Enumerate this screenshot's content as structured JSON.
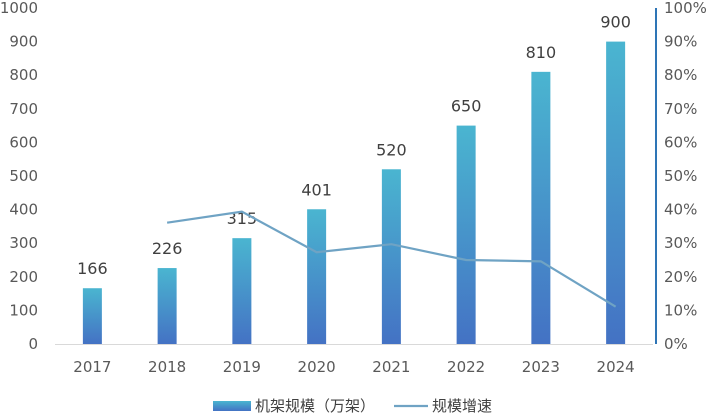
{
  "chart_data": {
    "type": "bar",
    "categories": [
      "2017",
      "2018",
      "2019",
      "2020",
      "2021",
      "2022",
      "2023",
      "2024"
    ],
    "series": [
      {
        "name": "机架规模（万架）",
        "type": "bar",
        "axis": "left",
        "values": [
          166,
          226,
          315,
          401,
          520,
          650,
          810,
          900
        ],
        "color_top": "#4ab5d0",
        "color_bottom": "#4472c4"
      },
      {
        "name": "规模增速",
        "type": "line",
        "axis": "right",
        "values": [
          null,
          36.1,
          39.4,
          27.3,
          29.7,
          25.0,
          24.6,
          11.1
        ],
        "color": "#6fa3c4"
      }
    ],
    "y_left": {
      "min": 0,
      "max": 1000,
      "step": 100,
      "tick_labels": [
        "0",
        "100",
        "200",
        "300",
        "400",
        "500",
        "600",
        "700",
        "800",
        "900",
        "1000"
      ]
    },
    "y_right": {
      "min": 0,
      "max": 100,
      "step": 10,
      "tick_labels": [
        "0%",
        "10%",
        "20%",
        "30%",
        "40%",
        "50%",
        "60%",
        "70%",
        "80%",
        "90%",
        "100%"
      ],
      "axis_color": "#2e75b6"
    },
    "data_labels": [
      "166",
      "226",
      "315",
      "401",
      "520",
      "650",
      "810",
      "900"
    ],
    "grid": false,
    "legend": "bottom",
    "title": "",
    "xlabel": "",
    "ylabel": ""
  }
}
